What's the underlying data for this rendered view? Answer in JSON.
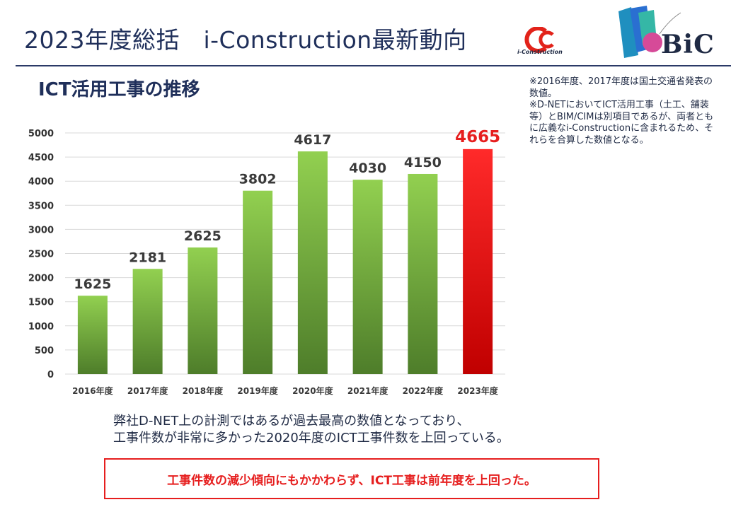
{
  "slide": {
    "title": "2023年度総括　i-Construction最新動向",
    "icon_logo_text": "i-Construction",
    "bic_logo_text": "BiC",
    "chart_heading": "ICT活用工事の推移"
  },
  "notes": [
    "※2016年度、2017年度は国土交通省発表の数値。",
    "※D-NETにおいてICT活用工事（土工、舗装等）とBIM/CIMは別項目であるが、両者ともに広義なi-Constructionに含まれるため、それらを合算した数値となる。"
  ],
  "summary": [
    "弊社D-NET上の計測ではあるが過去最高の数値となっており、",
    "工事件数が非常に多かった2020年度のICT工事件数を上回っている。"
  ],
  "callout": "工事件数の減少傾向にもかかわらず、ICT工事は前年度を上回った。",
  "colors": {
    "bar_green_top": "#92d050",
    "bar_green_bottom": "#4e7d2a",
    "bar_red_top": "#ff2a2a",
    "bar_red_bottom": "#c00000",
    "highlight_label": "#e61e1e",
    "title": "#1f2f5a"
  },
  "chart_data": {
    "type": "bar",
    "categories": [
      "2016年度",
      "2017年度",
      "2018年度",
      "2019年度",
      "2020年度",
      "2021年度",
      "2022年度",
      "2023年度"
    ],
    "values": [
      1625,
      2181,
      2625,
      3802,
      4617,
      4030,
      4150,
      4665
    ],
    "data_labels": [
      "1625",
      "2181",
      "2625",
      "3802",
      "4617",
      "4030",
      "4150",
      "4665"
    ],
    "highlight_index": 7,
    "yticks": [
      0,
      500,
      1000,
      1500,
      2000,
      2500,
      3000,
      3500,
      4000,
      4500,
      5000
    ],
    "ylim": [
      0,
      5000
    ],
    "grid": true,
    "title": "",
    "xlabel": "",
    "ylabel": ""
  }
}
